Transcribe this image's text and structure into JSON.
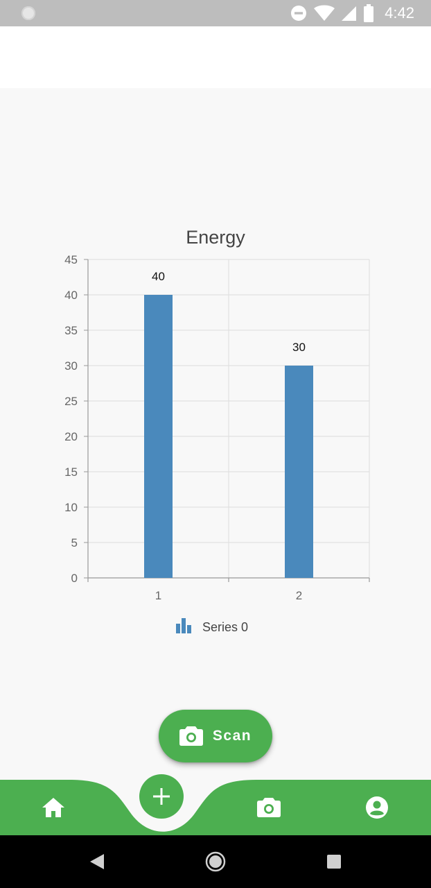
{
  "status_bar": {
    "time": "4:42",
    "icons": [
      "notification-dot-icon",
      "do-not-disturb-icon",
      "wifi-icon",
      "signal-icon",
      "battery-icon"
    ]
  },
  "colors": {
    "accent": "#4caf50",
    "bar": "#4a89bc",
    "status_bar": "#bdbdbd",
    "background": "#f8f8f8"
  },
  "chart_data": {
    "type": "bar",
    "title": "Energy",
    "categories": [
      "1",
      "2"
    ],
    "series": [
      {
        "name": "Series 0",
        "values": [
          40,
          30
        ]
      }
    ],
    "data_labels": [
      "40",
      "30"
    ],
    "ylim": [
      0,
      45
    ],
    "yticks": [
      0,
      5,
      10,
      15,
      20,
      25,
      30,
      35,
      40,
      45
    ],
    "xlabel": "",
    "ylabel": "",
    "grid": true,
    "legend": "bottom-center"
  },
  "scan_fab": {
    "label": "Scan",
    "icon": "camera-icon"
  },
  "bottom_nav": {
    "items": [
      {
        "icon": "home-icon"
      },
      {
        "icon": "add-icon"
      },
      {
        "icon": "camera-icon"
      },
      {
        "icon": "account-circle-icon"
      }
    ]
  },
  "system_nav": {
    "icons": [
      "back-icon",
      "home-circle-icon",
      "recents-icon"
    ]
  }
}
